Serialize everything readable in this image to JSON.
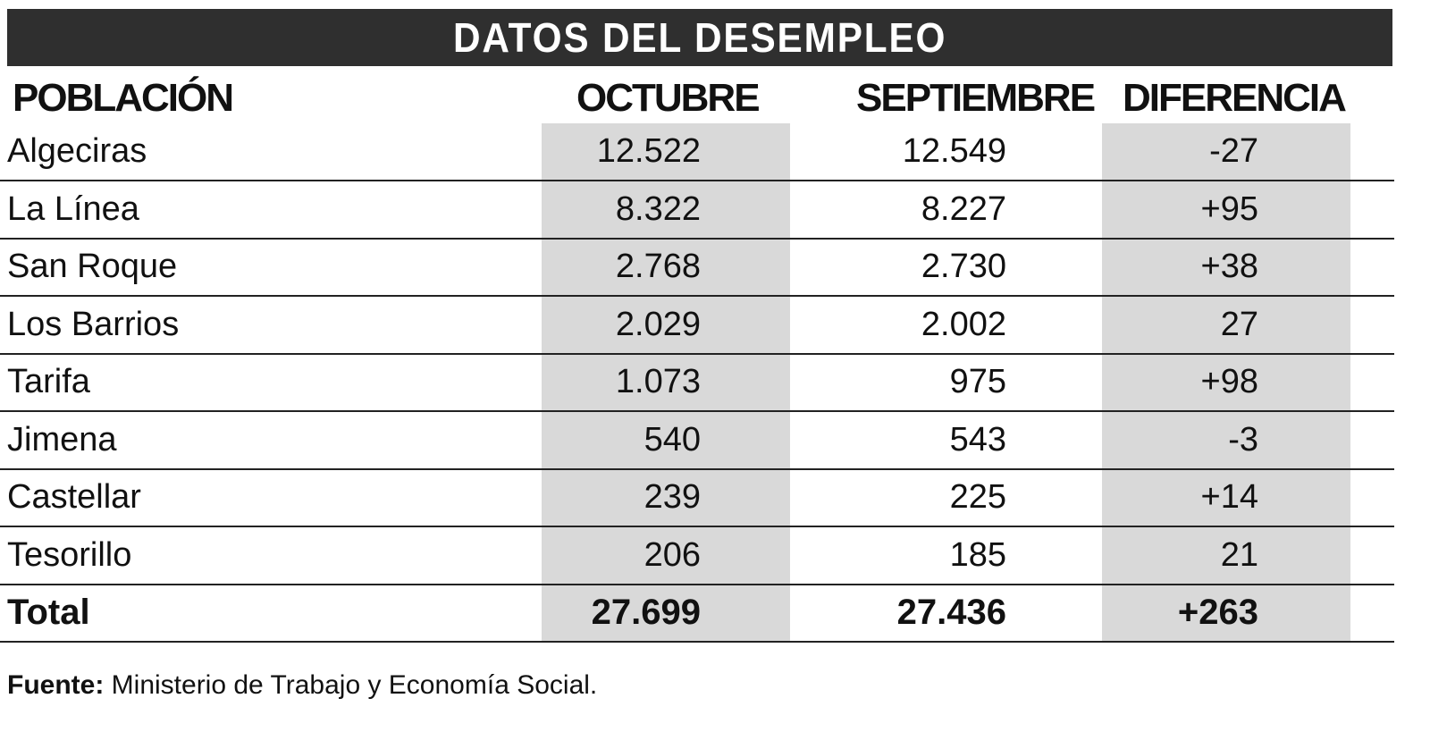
{
  "title": "DATOS DEL DESEMPLEO",
  "headers": {
    "poblacion": "POBLACIÓN",
    "octubre": "OCTUBRE",
    "septiembre": "SEPTIEMBRE",
    "diferencia": "DIFERENCIA"
  },
  "rows": [
    {
      "poblacion": "Algeciras",
      "octubre": "12.522",
      "septiembre": "12.549",
      "diferencia": "-27"
    },
    {
      "poblacion": "La Línea",
      "octubre": "8.322",
      "septiembre": "8.227",
      "diferencia": "+95"
    },
    {
      "poblacion": "San Roque",
      "octubre": "2.768",
      "septiembre": "2.730",
      "diferencia": "+38"
    },
    {
      "poblacion": "Los Barrios",
      "octubre": "2.029",
      "septiembre": "2.002",
      "diferencia": "27"
    },
    {
      "poblacion": "Tarifa",
      "octubre": "1.073",
      "septiembre": "975",
      "diferencia": "+98"
    },
    {
      "poblacion": "Jimena",
      "octubre": "540",
      "septiembre": "543",
      "diferencia": "-3"
    },
    {
      "poblacion": "Castellar",
      "octubre": "239",
      "septiembre": "225",
      "diferencia": "+14"
    },
    {
      "poblacion": "Tesorillo",
      "octubre": "206",
      "septiembre": "185",
      "diferencia": "21"
    }
  ],
  "total": {
    "poblacion": "Total",
    "octubre": "27.699",
    "septiembre": "27.436",
    "diferencia": "+263"
  },
  "source": {
    "label": "Fuente:",
    "text": " Ministerio de Trabajo y Economía Social."
  },
  "colors": {
    "title_bg": "#2f2f2f",
    "shade": "#d9d9d9",
    "rule": "#222222"
  }
}
